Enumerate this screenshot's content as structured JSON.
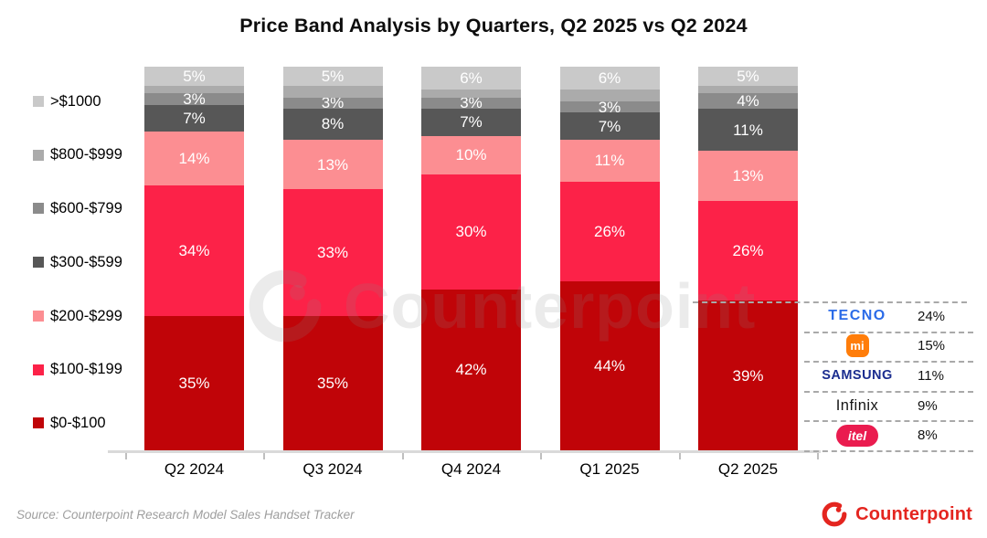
{
  "title": "Price Band Analysis by Quarters, Q2 2025 vs Q2 2024",
  "source_note": "Source: Counterpoint Research Model Sales Handset Tracker",
  "watermark_text": "Counterpoint",
  "footer_brand": "Counterpoint",
  "colors": {
    "brand_red": "#e4251f",
    "axis_line": "#d9d9d9",
    "dashed_line": "#a9a9a9",
    "tecno_blue": "#2b6be8",
    "xiaomi_orange": "#ff7d0a",
    "samsung_navy": "#1b2d8f",
    "infinix_black": "#141414",
    "itel_red": "#ea1c4f"
  },
  "chart_data": {
    "type": "bar",
    "stacked": true,
    "title": "Price Band Analysis by Quarters, Q2 2025 vs Q2 2024",
    "unit": "%",
    "ylim": [
      0,
      100
    ],
    "grid": false,
    "legend_position": "left",
    "categories": [
      "Q2 2024",
      "Q3 2024",
      "Q4 2024",
      "Q1 2025",
      "Q2 2025"
    ],
    "series": [
      {
        "name": "$0-$100",
        "color": "#c00408",
        "values": [
          35,
          35,
          42,
          44,
          39
        ],
        "labeled": true
      },
      {
        "name": "$100-$199",
        "color": "#fc2248",
        "values": [
          34,
          33,
          30,
          26,
          26
        ],
        "labeled": true
      },
      {
        "name": "$200-$299",
        "color": "#fc8e92",
        "values": [
          14,
          13,
          10,
          11,
          13
        ],
        "labeled": true
      },
      {
        "name": "$300-$599",
        "color": "#575757",
        "values": [
          7,
          8,
          7,
          7,
          11
        ],
        "labeled": true
      },
      {
        "name": "$600-$799",
        "color": "#8b8b8b",
        "values": [
          3,
          3,
          3,
          3,
          4
        ],
        "labeled": true
      },
      {
        "name": "$800-$999",
        "color": "#ababab",
        "values": [
          2,
          3,
          2,
          3,
          2
        ],
        "labeled": false
      },
      {
        "name": ">$1000",
        "color": "#c9c9c9",
        "values": [
          5,
          5,
          6,
          6,
          5
        ],
        "labeled": true
      }
    ],
    "legend_top_to_bottom": [
      ">$1000",
      "$800-$999",
      "$600-$799",
      "$300-$599",
      "$200-$299",
      "$100-$199",
      "$0-$100"
    ]
  },
  "brand_panel": {
    "rows": [
      {
        "brand": "TECNO",
        "logo_type": "tecno-wordmark",
        "share": "24%"
      },
      {
        "brand": "mi",
        "logo_type": "xiaomi-badge",
        "share": "15%"
      },
      {
        "brand": "SAMSUNG",
        "logo_type": "samsung-wordmark",
        "share": "11%"
      },
      {
        "brand": "Infinix",
        "logo_type": "plain-text",
        "share": "9%"
      },
      {
        "brand": "itel",
        "logo_type": "itel-pill",
        "share": "8%"
      }
    ]
  }
}
